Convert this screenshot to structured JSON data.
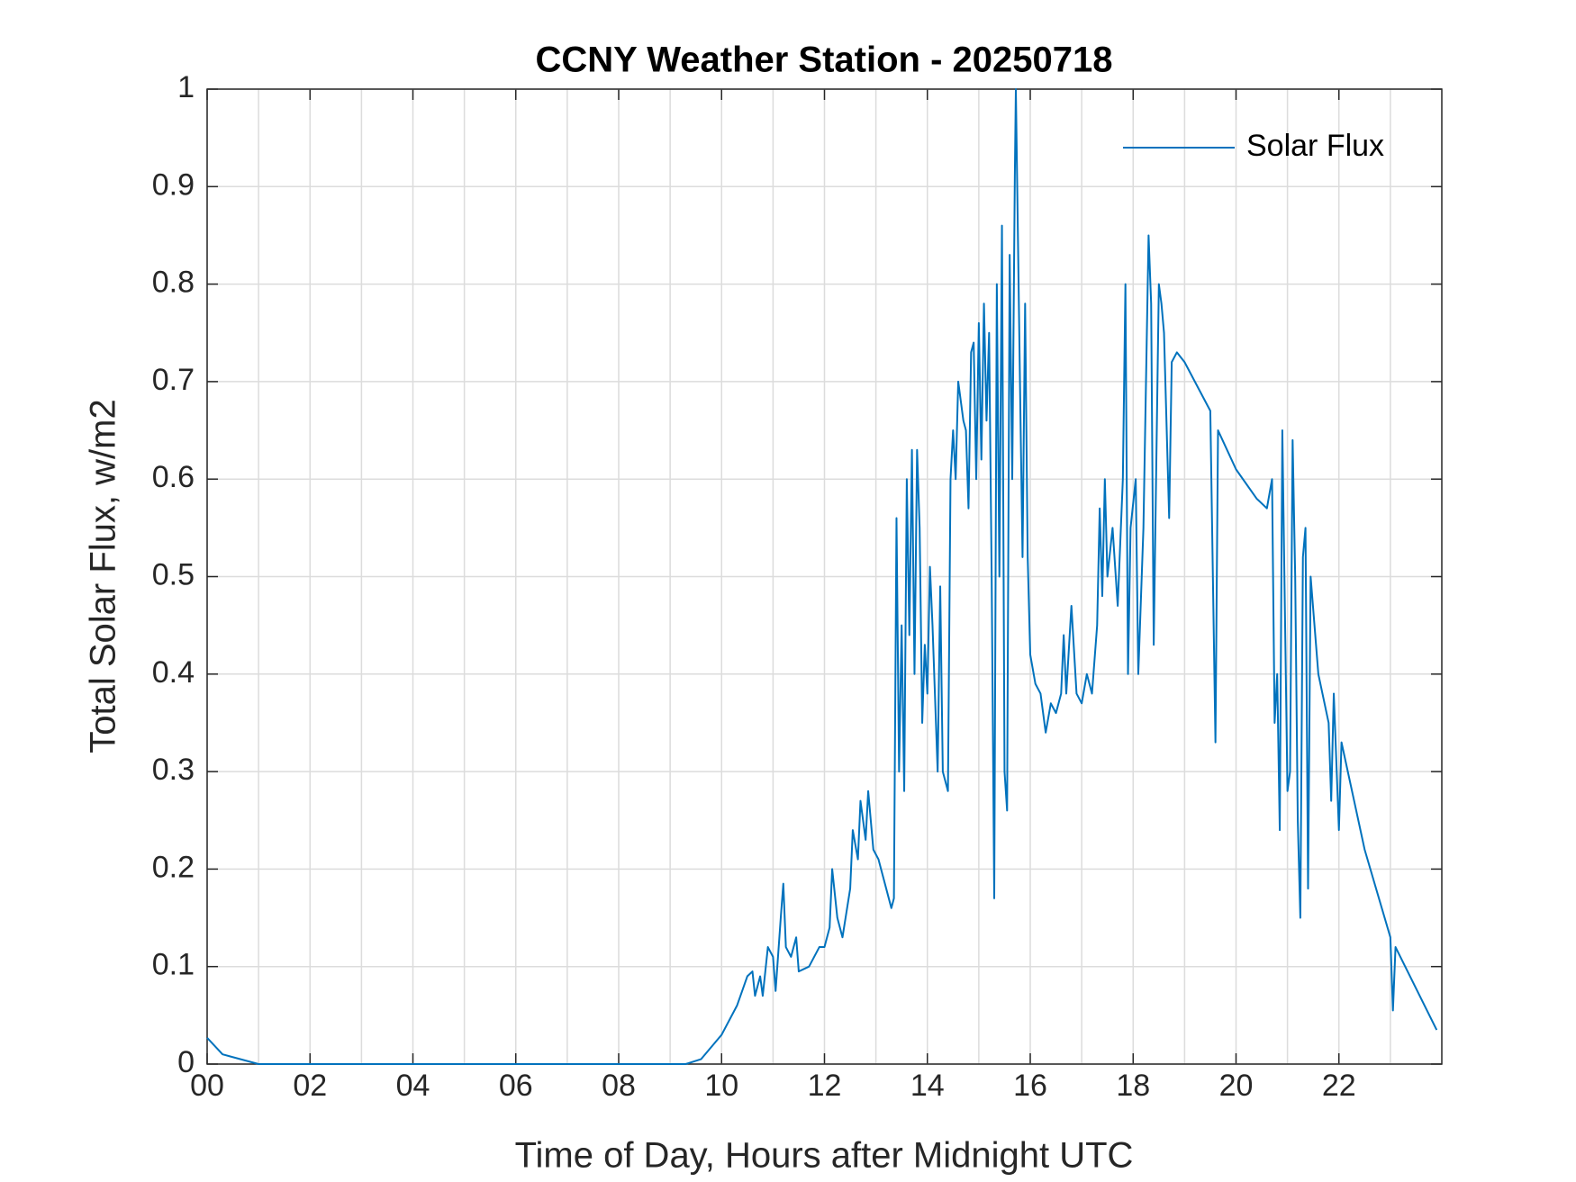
{
  "chart_data": {
    "type": "line",
    "title": "CCNY Weather Station - 20250718",
    "x_label": "Time of Day, Hours after Midnight UTC",
    "y_label": "Total Solar Flux, w/m2",
    "x": [
      0,
      0.3,
      1.0,
      9.3,
      9.6,
      10.0,
      10.3,
      10.5,
      10.6,
      10.65,
      10.75,
      10.8,
      10.9,
      11.0,
      11.05,
      11.15,
      11.2,
      11.25,
      11.35,
      11.45,
      11.5,
      11.7,
      11.9,
      12.0,
      12.1,
      12.15,
      12.25,
      12.35,
      12.5,
      12.55,
      12.65,
      12.7,
      12.8,
      12.85,
      12.95,
      13.05,
      13.2,
      13.3,
      13.35,
      13.4,
      13.45,
      13.5,
      13.55,
      13.6,
      13.65,
      13.7,
      13.75,
      13.8,
      13.85,
      13.9,
      13.95,
      14.0,
      14.05,
      14.1,
      14.2,
      14.25,
      14.3,
      14.4,
      14.45,
      14.5,
      14.55,
      14.6,
      14.7,
      14.75,
      14.8,
      14.85,
      14.9,
      14.95,
      15.0,
      15.05,
      15.1,
      15.15,
      15.2,
      15.25,
      15.3,
      15.35,
      15.4,
      15.45,
      15.5,
      15.55,
      15.6,
      15.65,
      15.7,
      15.72,
      15.8,
      15.85,
      15.9,
      15.95,
      16.0,
      16.1,
      16.2,
      16.3,
      16.4,
      16.5,
      16.6,
      16.65,
      16.7,
      16.8,
      16.9,
      17.0,
      17.1,
      17.2,
      17.3,
      17.35,
      17.4,
      17.45,
      17.5,
      17.6,
      17.7,
      17.8,
      17.85,
      17.9,
      17.95,
      18.05,
      18.1,
      18.2,
      18.3,
      18.35,
      18.4,
      18.5,
      18.55,
      18.6,
      18.7,
      18.75,
      18.85,
      19.0,
      19.3,
      19.5,
      19.55,
      19.6,
      19.65,
      20.0,
      20.4,
      20.6,
      20.7,
      20.75,
      20.8,
      20.85,
      20.9,
      21.0,
      21.05,
      21.1,
      21.15,
      21.2,
      21.25,
      21.3,
      21.35,
      21.4,
      21.45,
      21.6,
      21.8,
      21.85,
      21.9,
      22.0,
      22.05,
      22.5,
      23.0,
      23.05,
      23.1,
      23.9
    ],
    "series": [
      {
        "name": "Solar Flux",
        "color": "#0072bd",
        "values": [
          0.027,
          0.01,
          0,
          0,
          0.005,
          0.03,
          0.06,
          0.09,
          0.095,
          0.07,
          0.09,
          0.07,
          0.12,
          0.11,
          0.075,
          0.15,
          0.185,
          0.12,
          0.11,
          0.13,
          0.095,
          0.1,
          0.12,
          0.12,
          0.14,
          0.2,
          0.15,
          0.13,
          0.18,
          0.24,
          0.21,
          0.27,
          0.23,
          0.28,
          0.22,
          0.21,
          0.18,
          0.16,
          0.17,
          0.56,
          0.3,
          0.45,
          0.28,
          0.6,
          0.44,
          0.63,
          0.4,
          0.63,
          0.55,
          0.35,
          0.43,
          0.38,
          0.51,
          0.45,
          0.3,
          0.49,
          0.3,
          0.28,
          0.6,
          0.65,
          0.6,
          0.7,
          0.66,
          0.65,
          0.57,
          0.73,
          0.74,
          0.6,
          0.76,
          0.62,
          0.78,
          0.66,
          0.75,
          0.5,
          0.17,
          0.8,
          0.5,
          0.86,
          0.3,
          0.26,
          0.83,
          0.6,
          0.91,
          1.0,
          0.7,
          0.52,
          0.78,
          0.52,
          0.42,
          0.39,
          0.38,
          0.34,
          0.37,
          0.36,
          0.38,
          0.44,
          0.38,
          0.47,
          0.38,
          0.37,
          0.4,
          0.38,
          0.45,
          0.57,
          0.48,
          0.6,
          0.5,
          0.55,
          0.47,
          0.6,
          0.8,
          0.4,
          0.55,
          0.6,
          0.4,
          0.55,
          0.85,
          0.78,
          0.43,
          0.8,
          0.78,
          0.75,
          0.56,
          0.72,
          0.73,
          0.72,
          0.69,
          0.67,
          0.5,
          0.33,
          0.65,
          0.61,
          0.58,
          0.57,
          0.6,
          0.35,
          0.4,
          0.24,
          0.65,
          0.28,
          0.3,
          0.64,
          0.5,
          0.25,
          0.15,
          0.52,
          0.55,
          0.18,
          0.5,
          0.4,
          0.35,
          0.27,
          0.38,
          0.24,
          0.33,
          0.22,
          0.13,
          0.055,
          0.12,
          0.035
        ]
      }
    ],
    "xlim": [
      0,
      24
    ],
    "xticks": [
      {
        "value": 0,
        "label": "00"
      },
      {
        "value": 2,
        "label": "02"
      },
      {
        "value": 4,
        "label": "04"
      },
      {
        "value": 6,
        "label": "06"
      },
      {
        "value": 8,
        "label": "08"
      },
      10,
      12,
      14,
      16,
      18,
      20,
      22
    ],
    "xminorticks": [
      1,
      3,
      5,
      7,
      9,
      11,
      13,
      15,
      17,
      19,
      21,
      23
    ],
    "ylim": [
      0,
      1
    ],
    "yticks": [
      0,
      0.1,
      0.2,
      0.3,
      0.4,
      0.5,
      0.6,
      0.7,
      0.8,
      0.9,
      1
    ],
    "grid": true,
    "legend": "northeast"
  }
}
